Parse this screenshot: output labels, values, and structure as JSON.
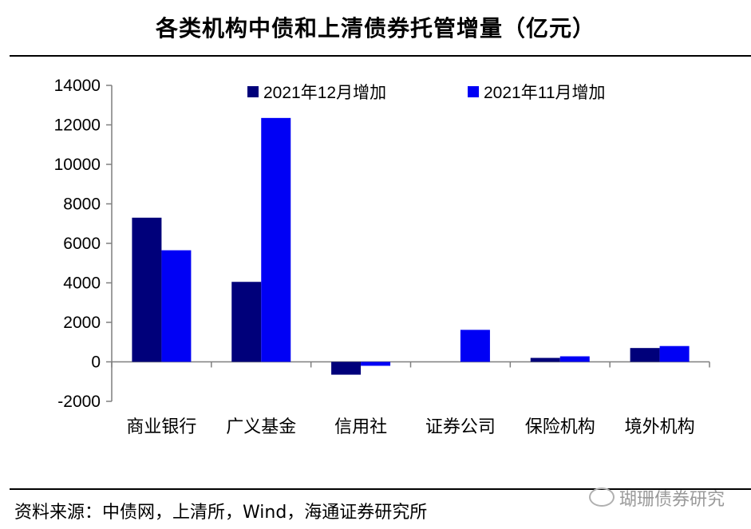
{
  "header": {
    "title": "各类机构中债和上清债券托管增量（亿元）"
  },
  "footer": {
    "source": "资料来源：中债网，上清所，Wind，海通证券研究所",
    "watermark": "瑚珊债券研究"
  },
  "colors": {
    "dec": "#00007A",
    "nov": "#0000F5",
    "axis": "#7f7f7f"
  },
  "chart_data": {
    "type": "bar",
    "categories": [
      "商业银行",
      "广义基金",
      "信用社",
      "证券公司",
      "保险机构",
      "境外机构"
    ],
    "series": [
      {
        "name": "2021年12月增加",
        "values": [
          7300,
          4050,
          -650,
          0,
          200,
          700
        ]
      },
      {
        "name": "2021年11月增加",
        "values": [
          5650,
          12350,
          -200,
          1620,
          280,
          800
        ]
      }
    ],
    "ylim": [
      -2000,
      14000
    ],
    "yticks": [
      14000,
      12000,
      10000,
      8000,
      6000,
      4000,
      2000,
      0,
      -2000
    ],
    "legend_position": "top",
    "grid": false,
    "title": "",
    "xlabel": "",
    "ylabel": ""
  }
}
